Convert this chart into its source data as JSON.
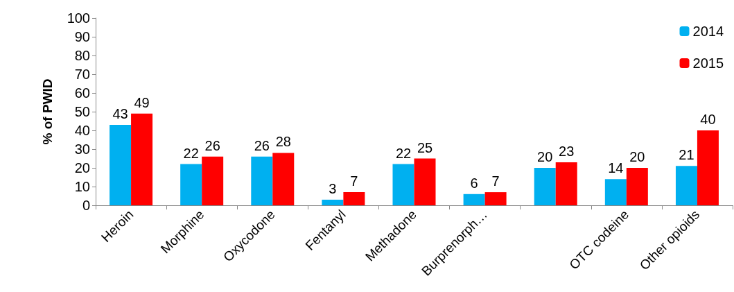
{
  "chart_data": {
    "type": "bar",
    "ylabel": "% of PWID",
    "categories": [
      "Heroin",
      "Morphine",
      "Oxycodone",
      "Fentanyl",
      "Methadone",
      "Burprenorph…",
      null,
      "OTC codeine",
      "Other opioids"
    ],
    "series": [
      {
        "name": "2014",
        "color": "#00b0f0",
        "values": [
          43,
          22,
          26,
          3,
          22,
          6,
          20,
          14,
          21
        ]
      },
      {
        "name": "2015",
        "color": "#ff0000",
        "values": [
          49,
          26,
          28,
          7,
          25,
          7,
          23,
          20,
          40
        ]
      }
    ],
    "ylim": [
      0,
      100
    ],
    "yticks": [
      0,
      10,
      20,
      30,
      40,
      50,
      60,
      70,
      80,
      90,
      100
    ],
    "grid": false,
    "legend": "top right",
    "data_labels": true
  }
}
